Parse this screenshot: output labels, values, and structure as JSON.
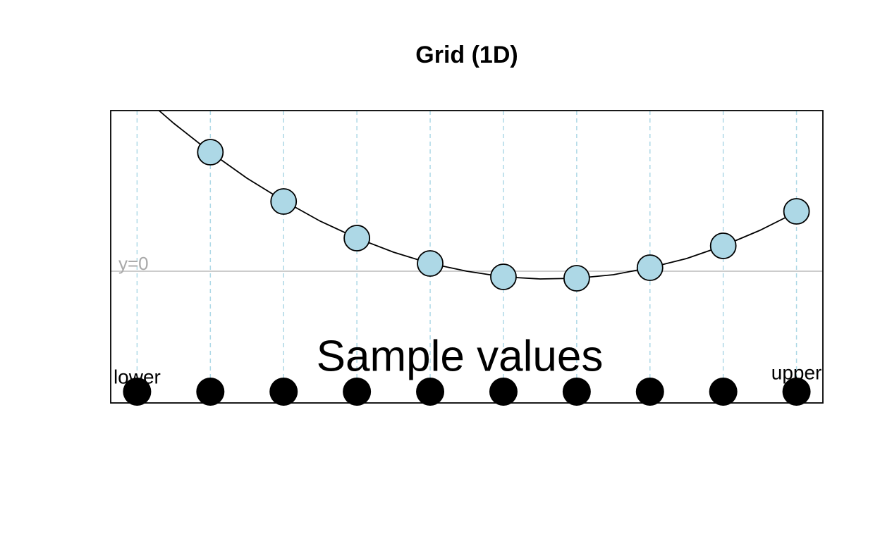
{
  "chart_data": {
    "type": "line",
    "title": "Grid (1D)",
    "annotation": "Sample values",
    "hline": 0,
    "hline_label": "y=0",
    "lower_label": "lower",
    "upper_label": "upper",
    "xlim": [
      0.64,
      10.36
    ],
    "ylim": [
      -1.87,
      2.28
    ],
    "curve": {
      "color": "#000000",
      "x": [
        1.3,
        1.5,
        2,
        2.5,
        3,
        3.5,
        4,
        4.5,
        5,
        5.5,
        6,
        6.5,
        7,
        7.5,
        8,
        8.5,
        9,
        9.5,
        10
      ],
      "values": [
        2.28,
        2.1,
        1.69,
        1.32,
        1.0,
        0.71,
        0.47,
        0.27,
        0.11,
        0.0,
        -0.08,
        -0.11,
        -0.1,
        -0.05,
        0.05,
        0.18,
        0.36,
        0.58,
        0.84
      ]
    },
    "points": {
      "color": "#add8e6",
      "x": [
        1,
        2,
        3,
        4,
        5,
        6,
        7,
        8,
        9,
        10
      ],
      "values": [
        null,
        1.69,
        0.99,
        0.47,
        0.11,
        -0.08,
        -0.1,
        0.05,
        0.36,
        0.85
      ]
    },
    "samples": {
      "color": "#000000",
      "x": [
        1,
        2,
        3,
        4,
        5,
        6,
        7,
        8,
        9,
        10
      ]
    },
    "grid_color": "#add8e6"
  }
}
